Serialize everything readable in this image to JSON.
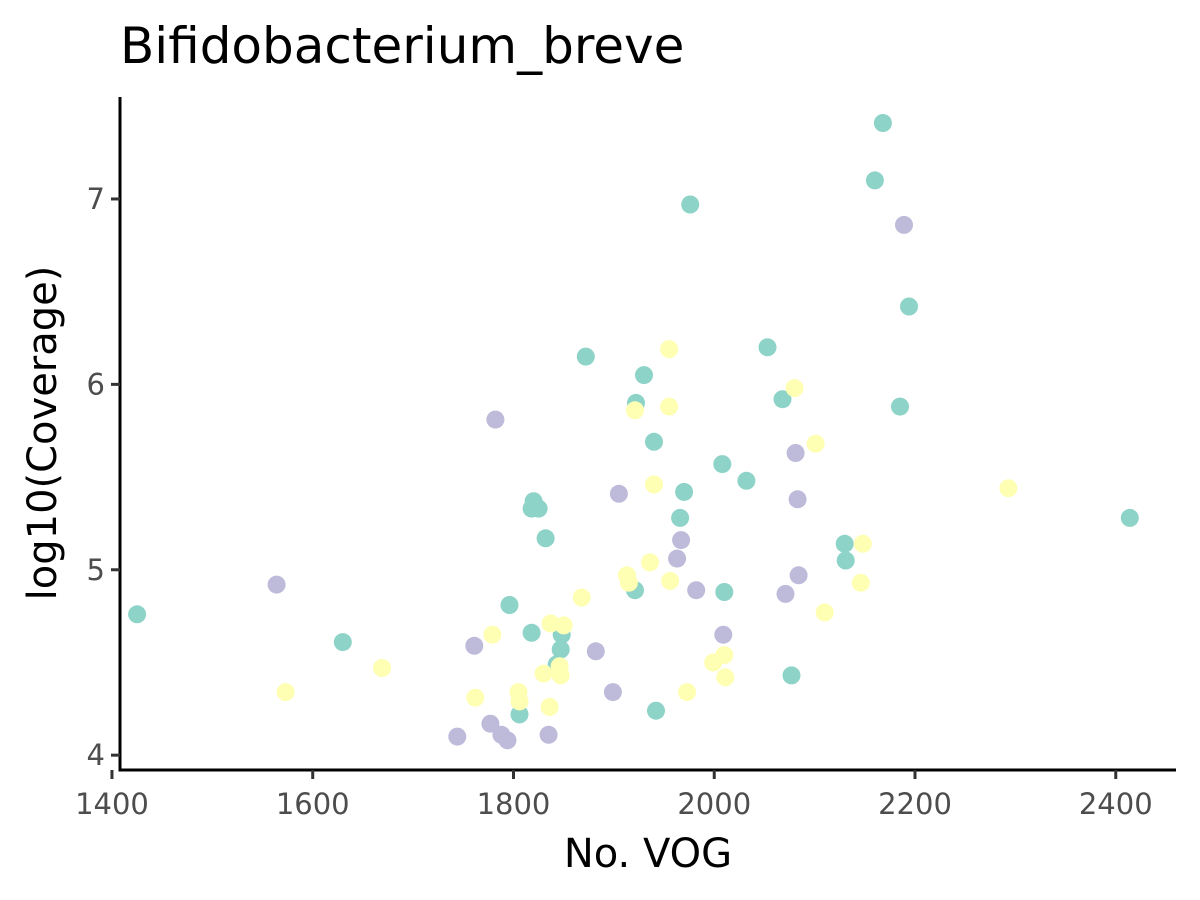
{
  "chart_data": {
    "type": "scatter",
    "title": "Bifidobacterium_breve",
    "xlabel": "No. VOG",
    "ylabel": "log10(Coverage)",
    "xlim": [
      1408,
      2460
    ],
    "ylim": [
      3.92,
      7.55
    ],
    "xticks": [
      1400,
      1600,
      1800,
      2000,
      2200,
      2400
    ],
    "yticks": [
      4,
      5,
      6,
      7
    ],
    "grid": false,
    "legend": "none",
    "series": [
      {
        "color": "#8dd3c7",
        "points": [
          [
            1425,
            4.76
          ],
          [
            1630,
            4.61
          ],
          [
            1796,
            4.81
          ],
          [
            1806,
            4.22
          ],
          [
            1818,
            4.66
          ],
          [
            1818,
            5.33
          ],
          [
            1820,
            5.37
          ],
          [
            1825,
            5.33
          ],
          [
            1832,
            5.17
          ],
          [
            1843,
            4.49
          ],
          [
            1847,
            4.57
          ],
          [
            1848,
            4.65
          ],
          [
            1872,
            6.15
          ],
          [
            1921,
            4.89
          ],
          [
            1922,
            5.9
          ],
          [
            1930,
            6.05
          ],
          [
            1940,
            5.69
          ],
          [
            1942,
            4.24
          ],
          [
            1966,
            5.28
          ],
          [
            1970,
            5.42
          ],
          [
            1976,
            6.97
          ],
          [
            2008,
            5.57
          ],
          [
            2010,
            4.88
          ],
          [
            2032,
            5.48
          ],
          [
            2053,
            6.2
          ],
          [
            2068,
            5.92
          ],
          [
            2077,
            4.43
          ],
          [
            2130,
            5.14
          ],
          [
            2131,
            5.05
          ],
          [
            2160,
            7.1
          ],
          [
            2168,
            7.41
          ],
          [
            2185,
            5.88
          ],
          [
            2194,
            6.42
          ],
          [
            2414,
            5.28
          ]
        ]
      },
      {
        "color": "#ffffb3",
        "points": [
          [
            1573,
            4.34
          ],
          [
            1669,
            4.47
          ],
          [
            1762,
            4.31
          ],
          [
            1779,
            4.65
          ],
          [
            1805,
            4.34
          ],
          [
            1806,
            4.29
          ],
          [
            1830,
            4.44
          ],
          [
            1836,
            4.26
          ],
          [
            1837,
            4.71
          ],
          [
            1846,
            4.48
          ],
          [
            1847,
            4.43
          ],
          [
            1850,
            4.7
          ],
          [
            1868,
            4.85
          ],
          [
            1913,
            4.97
          ],
          [
            1915,
            4.93
          ],
          [
            1921,
            5.86
          ],
          [
            1936,
            5.04
          ],
          [
            1940,
            5.46
          ],
          [
            1955,
            6.19
          ],
          [
            1955,
            5.88
          ],
          [
            1956,
            4.94
          ],
          [
            1973,
            4.34
          ],
          [
            1999,
            4.5
          ],
          [
            2010,
            4.54
          ],
          [
            2011,
            4.42
          ],
          [
            2080,
            5.98
          ],
          [
            2101,
            5.68
          ],
          [
            2110,
            4.77
          ],
          [
            2146,
            4.93
          ],
          [
            2148,
            5.14
          ],
          [
            2293,
            5.44
          ]
        ]
      },
      {
        "color": "#bebada",
        "points": [
          [
            1564,
            4.92
          ],
          [
            1744,
            4.1
          ],
          [
            1761,
            4.59
          ],
          [
            1777,
            4.17
          ],
          [
            1782,
            5.81
          ],
          [
            1788,
            4.11
          ],
          [
            1794,
            4.08
          ],
          [
            1835,
            4.11
          ],
          [
            1882,
            4.56
          ],
          [
            1899,
            4.34
          ],
          [
            1905,
            5.41
          ],
          [
            1963,
            5.06
          ],
          [
            1967,
            5.16
          ],
          [
            1982,
            4.89
          ],
          [
            2009,
            4.65
          ],
          [
            2071,
            4.87
          ],
          [
            2081,
            5.63
          ],
          [
            2083,
            5.38
          ],
          [
            2084,
            4.97
          ],
          [
            2189,
            6.86
          ]
        ]
      }
    ]
  }
}
